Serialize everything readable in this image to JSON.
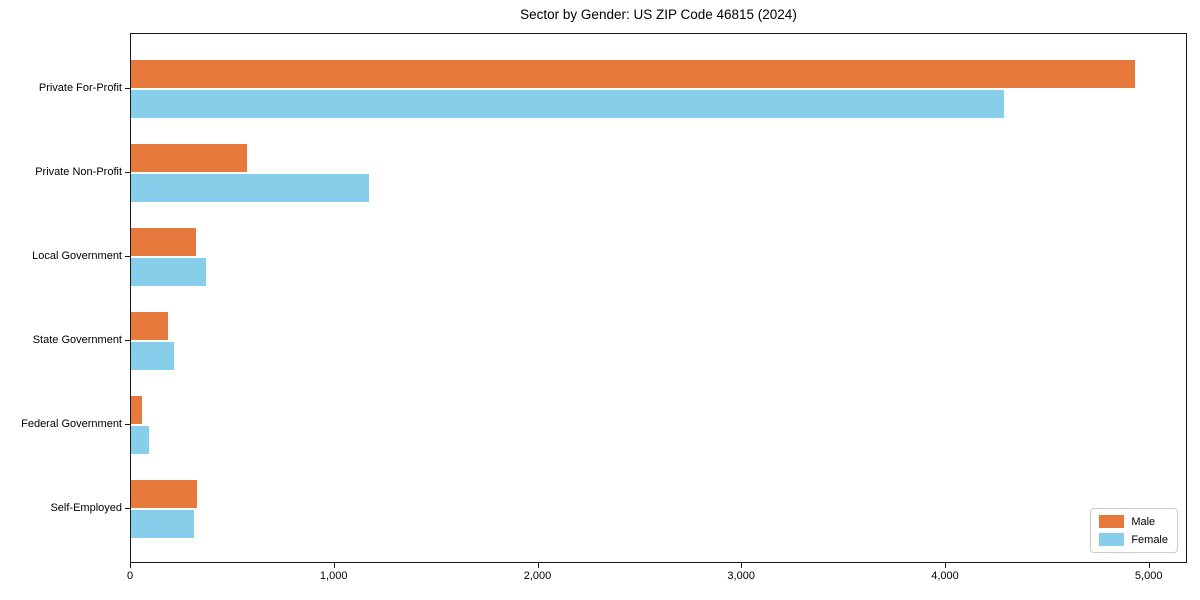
{
  "title": "Sector by Gender: US ZIP Code 46815 (2024)",
  "colors": {
    "male": "#e8793c",
    "female": "#87ceeb",
    "spine": "#1a1a1a",
    "background": "#ffffff"
  },
  "legend": {
    "position": "lower right",
    "items": [
      {
        "label": "Male",
        "color": "#e8793c"
      },
      {
        "label": "Female",
        "color": "#87ceeb"
      }
    ]
  },
  "chart_data": {
    "type": "bar",
    "orientation": "horizontal",
    "title": "Sector by Gender: US ZIP Code 46815 (2024)",
    "xlabel": "",
    "ylabel": "",
    "grid": false,
    "legend_position": "lower right",
    "categories": [
      "Private For-Profit",
      "Private Non-Profit",
      "Local Government",
      "State Government",
      "Federal Government",
      "Self-Employed"
    ],
    "series": [
      {
        "name": "Male",
        "color": "#e8793c",
        "values": [
          4930,
          568,
          321,
          181,
          55,
          324
        ]
      },
      {
        "name": "Female",
        "color": "#87ceeb",
        "values": [
          4283,
          1169,
          368,
          210,
          90,
          311
        ]
      }
    ],
    "x_ticks": [
      0,
      1000,
      2000,
      3000,
      4000,
      5000
    ],
    "x_tick_labels": [
      "0",
      "1,000",
      "2,000",
      "3,000",
      "4,000",
      "5,000"
    ],
    "xlim": [
      0,
      5188
    ]
  }
}
